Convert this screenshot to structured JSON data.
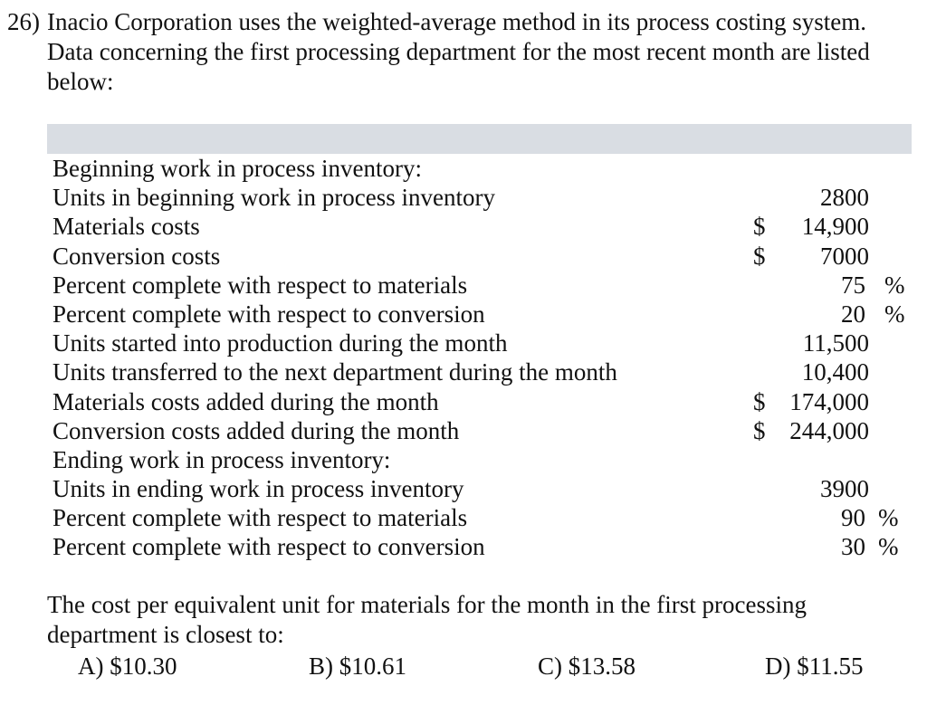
{
  "question": {
    "number": "26)",
    "lines": [
      "Inacio Corporation uses the weighted-average method in its process costing system.",
      "Data concerning the first processing department for the most recent month are listed",
      "below:"
    ]
  },
  "table": {
    "rows": [
      {
        "label": "Beginning work in process inventory:",
        "dollar": "",
        "amount": "",
        "pct": "",
        "pct_sign": ""
      },
      {
        "label": "Units in beginning work in process inventory",
        "dollar": "",
        "amount": "2800",
        "pct": "",
        "pct_sign": ""
      },
      {
        "label": "Materials costs",
        "dollar": "$",
        "amount": "14,900",
        "pct": "",
        "pct_sign": ""
      },
      {
        "label": "Conversion costs",
        "dollar": "$",
        "amount": "7000",
        "pct": "",
        "pct_sign": ""
      },
      {
        "label": "Percent complete with respect to materials",
        "dollar": "",
        "amount": "",
        "pct": "75",
        "pct_sign": "%"
      },
      {
        "label": "Percent complete with respect to conversion",
        "dollar": "",
        "amount": "",
        "pct": "20",
        "pct_sign": "%"
      },
      {
        "label": "Units started into production during the month",
        "dollar": "",
        "amount": "11,500",
        "pct": "",
        "pct_sign": ""
      },
      {
        "label": "Units transferred to the next department during the month",
        "dollar": "",
        "amount": "10,400",
        "pct": "",
        "pct_sign": ""
      },
      {
        "label": "Materials costs added during the month",
        "dollar": "$",
        "amount": "174,000",
        "pct": "",
        "pct_sign": ""
      },
      {
        "label": "Conversion costs added during the month",
        "dollar": "$",
        "amount": "244,000",
        "pct": "",
        "pct_sign": ""
      },
      {
        "label": "Ending work in process inventory:",
        "dollar": "",
        "amount": "",
        "pct": "",
        "pct_sign": ""
      },
      {
        "label": "Units in ending work in process inventory",
        "dollar": "",
        "amount": "3900",
        "pct": "",
        "pct_sign": ""
      },
      {
        "label": "Percent complete with respect to materials",
        "dollar": "",
        "amount": "",
        "pct": "90",
        "pct_sign": "%"
      },
      {
        "label": "Percent complete with respect to conversion",
        "dollar": "",
        "amount": "",
        "pct": "30",
        "pct_sign": "%"
      }
    ]
  },
  "prompt": {
    "lines": [
      "The cost per equivalent unit for materials for the month in the first processing",
      "department is closest to:"
    ]
  },
  "choices": [
    {
      "letter": "A)",
      "value": "$10.30"
    },
    {
      "letter": "B)",
      "value": "$10.61"
    },
    {
      "letter": "C)",
      "value": "$13.58"
    },
    {
      "letter": "D)",
      "value": "$11.55"
    }
  ]
}
